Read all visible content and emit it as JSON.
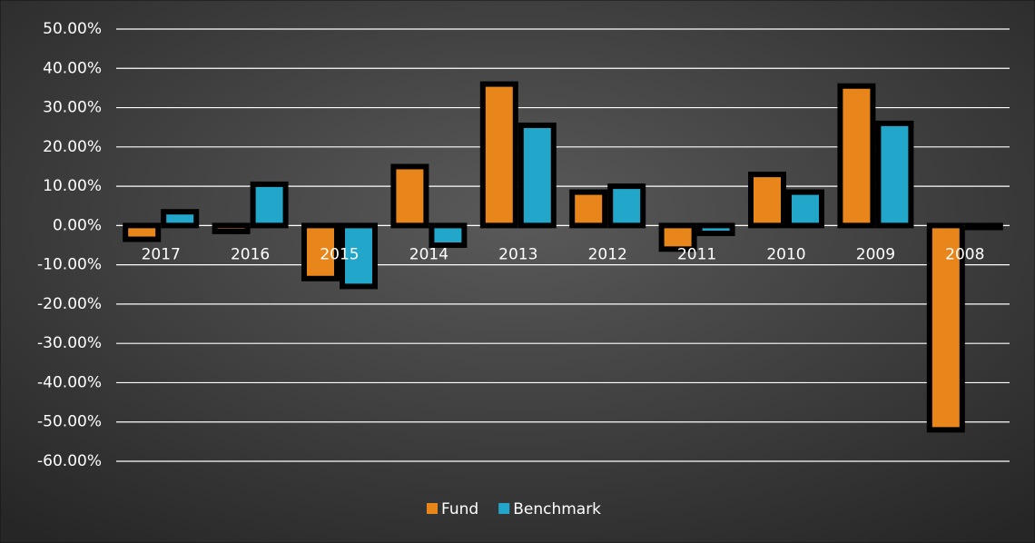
{
  "chart_data": {
    "type": "bar",
    "categories": [
      "2017",
      "2016",
      "2015",
      "2014",
      "2013",
      "2012",
      "2011",
      "2010",
      "2009",
      "2008"
    ],
    "series": [
      {
        "name": "Fund",
        "color": "#e8861c",
        "values": [
          -3.5,
          -1.5,
          -13.5,
          15,
          36,
          8.5,
          -6,
          13,
          35.5,
          -52
        ]
      },
      {
        "name": "Benchmark",
        "color": "#22a6c9",
        "values": [
          3.5,
          10.5,
          -15.5,
          -5,
          25.5,
          10,
          -2,
          8.5,
          26,
          -0.5
        ]
      }
    ],
    "ylim": [
      -60,
      50
    ],
    "yticks": [
      {
        "value": 50,
        "label": "50.00%"
      },
      {
        "value": 40,
        "label": "40.00%"
      },
      {
        "value": 30,
        "label": "30.00%"
      },
      {
        "value": 20,
        "label": "20.00%"
      },
      {
        "value": 10,
        "label": "10.00%"
      },
      {
        "value": 0,
        "label": "0.00%"
      },
      {
        "value": -10,
        "label": "-10.00%"
      },
      {
        "value": -20,
        "label": "-20.00%"
      },
      {
        "value": -30,
        "label": "-30.00%"
      },
      {
        "value": -40,
        "label": "-40.00%"
      },
      {
        "value": -50,
        "label": "-50.00%"
      },
      {
        "value": -60,
        "label": "-60.00%"
      }
    ],
    "grid": true,
    "legend": "bottom"
  }
}
